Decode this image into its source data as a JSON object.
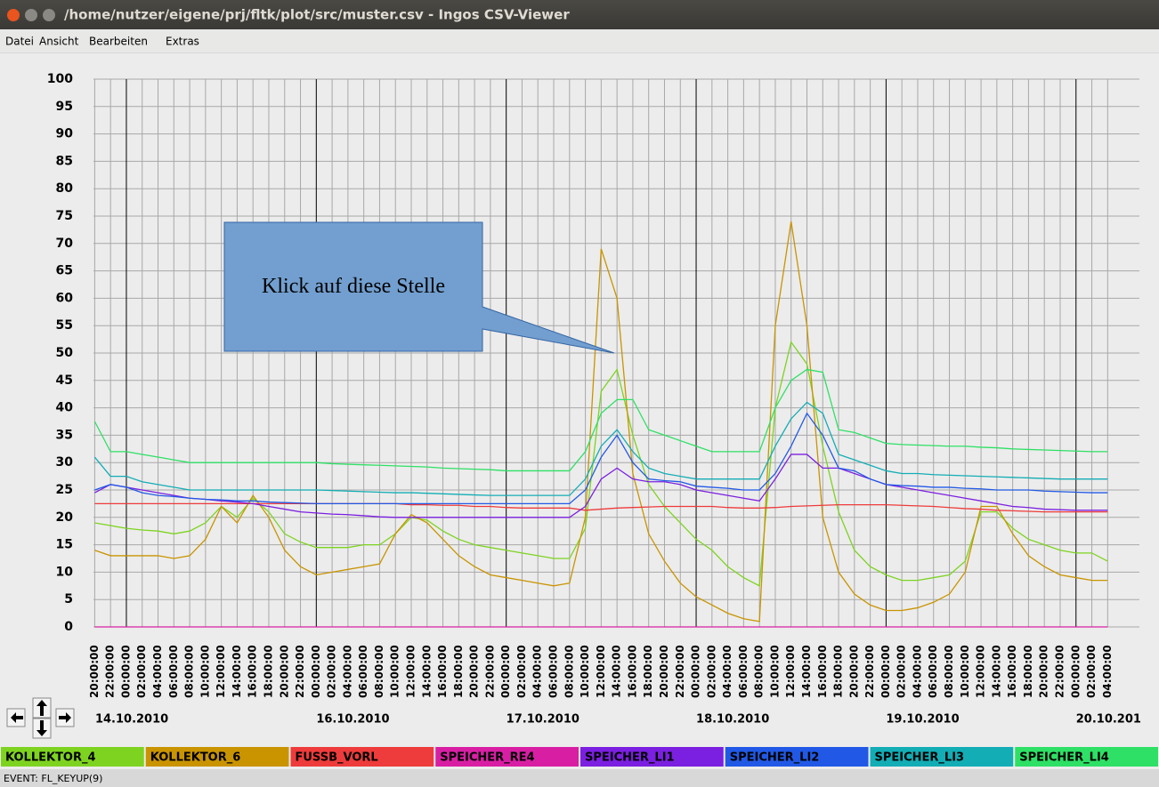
{
  "window": {
    "title": "/home/nutzer/eigene/prj/fltk/plot/src/muster.csv - Ingos CSV-Viewer",
    "menu": [
      "Datei",
      "Ansicht",
      "Bearbeiten",
      "Extras"
    ]
  },
  "status": "EVENT: FL_KEYUP(9)",
  "chart_data": {
    "type": "line",
    "annotation": "Klick auf diese Stelle",
    "ylim": [
      0,
      100
    ],
    "yticks": [
      0,
      5,
      10,
      15,
      20,
      25,
      30,
      35,
      40,
      45,
      50,
      55,
      60,
      65,
      70,
      75,
      80,
      85,
      90,
      95,
      100
    ],
    "grid": true,
    "dates": [
      "14.10.2010",
      "16.10.2010",
      "17.10.2010",
      "18.10.2010",
      "19.10.2010",
      "20.10.201"
    ],
    "categories": [
      "20:00:00",
      "22:00:00",
      "00:00:00",
      "02:00:00",
      "04:00:00",
      "06:00:00",
      "08:00:00",
      "10:00:00",
      "12:00:00",
      "14:00:00",
      "16:00:00",
      "18:00:00",
      "20:00:00",
      "22:00:00",
      "00:00:00",
      "02:00:00",
      "04:00:00",
      "06:00:00",
      "08:00:00",
      "10:00:00",
      "12:00:00",
      "14:00:00",
      "16:00:00",
      "18:00:00",
      "20:00:00",
      "22:00:00",
      "00:00:00",
      "02:00:00",
      "04:00:00",
      "06:00:00",
      "08:00:00",
      "10:00:00",
      "12:00:00",
      "14:00:00",
      "16:00:00",
      "18:00:00",
      "20:00:00",
      "22:00:00",
      "00:00:00",
      "02:00:00",
      "04:00:00",
      "06:00:00",
      "08:00:00",
      "10:00:00",
      "12:00:00",
      "14:00:00",
      "16:00:00",
      "18:00:00",
      "20:00:00",
      "22:00:00",
      "00:00:00",
      "02:00:00",
      "04:00:00",
      "06:00:00",
      "08:00:00",
      "10:00:00",
      "12:00:00",
      "14:00:00",
      "16:00:00",
      "18:00:00",
      "20:00:00",
      "22:00:00",
      "00:00:00",
      "02:00:00",
      "04:00:00"
    ],
    "series": [
      {
        "name": "KOLLEKTOR_4",
        "color": "#7ed321",
        "values": [
          19,
          18.5,
          18,
          17.7,
          17.5,
          17,
          17.5,
          19,
          22,
          20,
          23.5,
          21,
          17,
          15.5,
          14.5,
          14.5,
          14.5,
          15,
          15,
          17,
          20,
          19.5,
          17.5,
          16,
          15,
          14.5,
          14,
          13.5,
          13,
          12.5,
          12.5,
          18,
          43,
          47,
          35,
          26,
          22,
          19,
          16,
          14,
          11,
          9,
          7.5,
          40,
          52,
          48,
          33,
          21,
          14,
          11,
          9.5,
          8.5,
          8.5,
          9,
          9.5,
          12,
          21,
          21,
          18,
          16,
          15,
          14,
          13.5,
          13.5,
          12
        ]
      },
      {
        "name": "KOLLEKTOR_6",
        "color": "#c99400",
        "values": [
          14,
          13,
          13,
          13,
          13,
          12.5,
          13,
          16,
          22,
          19,
          24,
          20,
          14,
          11,
          9.5,
          10,
          10.5,
          11,
          11.5,
          17,
          20.5,
          19,
          16,
          13,
          11,
          9.5,
          9,
          8.5,
          8,
          7.5,
          8,
          20,
          69,
          60,
          28,
          17,
          12,
          8,
          5.5,
          4,
          2.5,
          1.5,
          1,
          55,
          74,
          55,
          20,
          10,
          6,
          4,
          3,
          3,
          3.5,
          4.5,
          6,
          10,
          22,
          22,
          17,
          13,
          11,
          9.5,
          9,
          8.5,
          8.5
        ]
      },
      {
        "name": "FUSSB_VORL",
        "color": "#ee3b3b",
        "values": [
          22.5,
          22.5,
          22.5,
          22.5,
          22.5,
          22.5,
          22.5,
          22.5,
          22.5,
          22.5,
          22.5,
          22.5,
          22.5,
          22.5,
          22.5,
          22.5,
          22.5,
          22.5,
          22.5,
          22.5,
          22.3,
          22.3,
          22.2,
          22.2,
          22,
          22,
          21.8,
          21.7,
          21.7,
          21.7,
          21.7,
          21.3,
          21.5,
          21.7,
          21.8,
          21.9,
          22,
          22,
          22,
          22,
          21.8,
          21.7,
          21.7,
          21.8,
          22,
          22.1,
          22.2,
          22.3,
          22.3,
          22.3,
          22.3,
          22.2,
          22.1,
          22,
          21.8,
          21.6,
          21.5,
          21.3,
          21.2,
          21.1,
          21,
          21,
          21,
          21,
          21
        ]
      },
      {
        "name": "SPEICHER_RE4",
        "color": "#d81fa4",
        "values": [
          0,
          0,
          0,
          0,
          0,
          0,
          0,
          0,
          0,
          0,
          0,
          0,
          0,
          0,
          0,
          0,
          0,
          0,
          0,
          0,
          0,
          0,
          0,
          0,
          0,
          0,
          0,
          0,
          0,
          0,
          0,
          0,
          0,
          0,
          0,
          0,
          0,
          0,
          0,
          0,
          0,
          0,
          0,
          0,
          0,
          0,
          0,
          0,
          0,
          0,
          0,
          0,
          0,
          0,
          0,
          0,
          0,
          0,
          0,
          0,
          0,
          0,
          0,
          0,
          0
        ]
      },
      {
        "name": "SPEICHER_LI1",
        "color": "#7b1fe0",
        "values": [
          24.5,
          26,
          25.5,
          25,
          24.5,
          24,
          23.5,
          23.3,
          23,
          22.8,
          22.5,
          22,
          21.5,
          21,
          20.8,
          20.6,
          20.5,
          20.3,
          20.1,
          20,
          20,
          20,
          20,
          20,
          20,
          20,
          20,
          20,
          20,
          20,
          20,
          22,
          27,
          29,
          27,
          26.5,
          26.5,
          26,
          25,
          24.5,
          24,
          23.5,
          23,
          27,
          31.5,
          31.5,
          29,
          29,
          28,
          27,
          26,
          25.5,
          25,
          24.5,
          24,
          23.5,
          23,
          22.5,
          22,
          21.8,
          21.5,
          21.4,
          21.3,
          21.3,
          21.3
        ]
      },
      {
        "name": "SPEICHER_LI2",
        "color": "#2159e6",
        "values": [
          25,
          26,
          25.5,
          24.5,
          24,
          23.8,
          23.5,
          23.3,
          23.2,
          23,
          23,
          22.8,
          22.7,
          22.6,
          22.5,
          22.5,
          22.5,
          22.5,
          22.5,
          22.5,
          22.5,
          22.5,
          22.5,
          22.5,
          22.5,
          22.5,
          22.5,
          22.5,
          22.5,
          22.5,
          22.5,
          25,
          31,
          35,
          30,
          27,
          26.7,
          26.5,
          25.7,
          25.5,
          25.3,
          25,
          25,
          28,
          33,
          39,
          35,
          29,
          28.5,
          27,
          26,
          25.8,
          25.7,
          25.5,
          25.5,
          25.3,
          25.2,
          25,
          25,
          25,
          24.8,
          24.7,
          24.6,
          24.5,
          24.5
        ]
      },
      {
        "name": "SPEICHER_LI3",
        "color": "#13adb5",
        "values": [
          31,
          27.5,
          27.5,
          26.5,
          26,
          25.5,
          25,
          25,
          25,
          25,
          25,
          25,
          25,
          25,
          25,
          24.9,
          24.8,
          24.7,
          24.6,
          24.5,
          24.5,
          24.4,
          24.3,
          24.2,
          24.1,
          24,
          24,
          24,
          24,
          24,
          24,
          27,
          33,
          36,
          32,
          29,
          28,
          27.5,
          27,
          27,
          27,
          27,
          27,
          33,
          38,
          41,
          39,
          31.5,
          30.5,
          29.5,
          28.5,
          28,
          28,
          27.8,
          27.7,
          27.6,
          27.5,
          27.4,
          27.3,
          27.2,
          27.1,
          27,
          27,
          27,
          27
        ]
      },
      {
        "name": "SPEICHER_LI4",
        "color": "#2ee065",
        "values": [
          37.5,
          32,
          32,
          31.5,
          31,
          30.5,
          30,
          30,
          30,
          30,
          30,
          30,
          30,
          30,
          30,
          29.8,
          29.7,
          29.6,
          29.5,
          29.4,
          29.3,
          29.2,
          29,
          28.9,
          28.8,
          28.7,
          28.5,
          28.5,
          28.5,
          28.5,
          28.5,
          32,
          39,
          41.5,
          41.5,
          36,
          35,
          34,
          33,
          32,
          32,
          32,
          32,
          40,
          45,
          47,
          46.5,
          36,
          35.5,
          34.5,
          33.5,
          33.3,
          33.2,
          33.1,
          33,
          33,
          32.8,
          32.7,
          32.5,
          32.4,
          32.3,
          32.2,
          32.1,
          32,
          32
        ]
      }
    ]
  }
}
